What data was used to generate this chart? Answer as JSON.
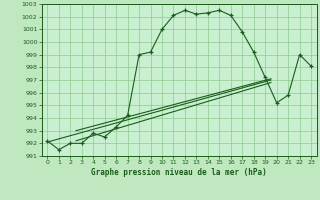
{
  "title": "Graphe pression niveau de la mer (hPa)",
  "bg_color": "#c0e8c0",
  "plot_bg_color": "#c8f0d0",
  "line_color": "#1a5c1a",
  "grid_color": "#90c890",
  "x_ticks": [
    0,
    1,
    2,
    3,
    4,
    5,
    6,
    7,
    8,
    9,
    10,
    11,
    12,
    13,
    14,
    15,
    16,
    17,
    18,
    19,
    20,
    21,
    22,
    23
  ],
  "xlim": [
    -0.5,
    23.5
  ],
  "ylim": [
    991,
    1003
  ],
  "yticks": [
    991,
    992,
    993,
    994,
    995,
    996,
    997,
    998,
    999,
    1000,
    1001,
    1002,
    1003
  ],
  "main_y": [
    992.2,
    991.5,
    992.0,
    992.0,
    992.8,
    992.5,
    993.3,
    994.2,
    999.0,
    999.2,
    1001.0,
    1002.1,
    1002.5,
    1002.2,
    1002.3,
    1002.5,
    1002.1,
    1000.8,
    999.2,
    997.2,
    995.2,
    995.8,
    999.0,
    998.1
  ],
  "reg_lines": [
    [
      [
        0,
        992.1
      ],
      [
        19.5,
        997.0
      ]
    ],
    [
      [
        2.5,
        992.2
      ],
      [
        19.5,
        996.8
      ]
    ],
    [
      [
        2.5,
        993.0
      ],
      [
        19.5,
        997.1
      ]
    ]
  ]
}
